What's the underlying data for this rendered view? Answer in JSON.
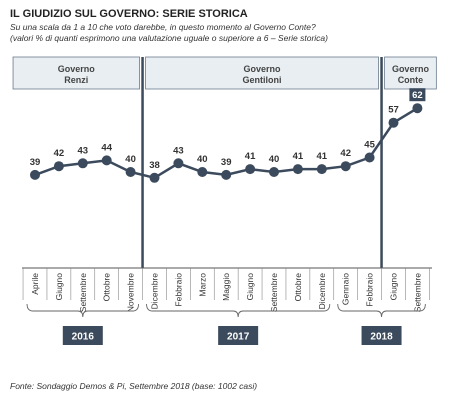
{
  "chart_data": {
    "type": "line",
    "title": "IL GIUDIZIO SUL GOVERNO: SERIE STORICA",
    "subtitle": [
      "Su una scala da 1 a 10 che voto darebbe, in questo momento al Governo Conte?",
      "(valori % di quanti esprimono una valutazione uguale o superiore a 6 – Serie storica)"
    ],
    "categories": [
      "Aprile",
      "Giugno",
      "Settembre",
      "Ottobre",
      "Novembre",
      "Dicembre",
      "Febbraio",
      "Marzo",
      "Maggio",
      "Giugno",
      "Settembre",
      "Ottobre",
      "Dicembre",
      "Gennaio",
      "Febbraio",
      "Giugno",
      "Settembre"
    ],
    "values": [
      39,
      42,
      43,
      44,
      40,
      38,
      43,
      40,
      39,
      41,
      40,
      41,
      41,
      42,
      45,
      57,
      62
    ],
    "color": "#3b4a5c",
    "governments": [
      [
        "Governo",
        "Renzi"
      ],
      [
        "Governo",
        "Gentiloni"
      ],
      [
        "Governo",
        "Conte"
      ]
    ],
    "years": [
      "2016",
      "2017",
      "2018"
    ],
    "source": "Fonte: Sondaggio Demos & Pi, Settembre 2018 (base: 1002 casi)"
  }
}
